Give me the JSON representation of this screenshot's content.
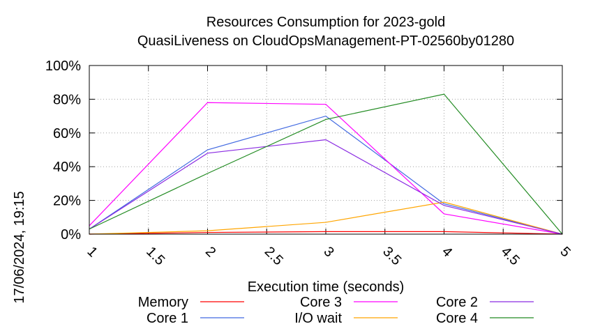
{
  "chart_data": {
    "type": "line",
    "title_line1": "Resources Consumption for 2023-gold",
    "title_line2": "QuasiLiveness on CloudOpsManagement-PT-02560by01280",
    "xlabel": "Execution time (seconds)",
    "ylabel": "",
    "side_label": "17/06/2024, 19:15",
    "xlim": [
      1,
      5
    ],
    "ylim": [
      0,
      100
    ],
    "xticks": [
      "1",
      "1.5",
      "2",
      "2.5",
      "3",
      "3.5",
      "4",
      "4.5",
      "5"
    ],
    "yticks": [
      "0%",
      "20%",
      "40%",
      "60%",
      "80%",
      "100%"
    ],
    "grid": true,
    "legend_position": "bottom",
    "x": [
      1,
      2,
      3,
      4,
      5
    ],
    "series": [
      {
        "name": "Memory",
        "color": "#ff0000",
        "values": [
          0,
          1,
          1.5,
          1.5,
          0
        ]
      },
      {
        "name": "Core 1",
        "color": "#4169e1",
        "values": [
          3,
          50,
          70,
          18,
          0
        ]
      },
      {
        "name": "Core 3",
        "color": "#ff00ff",
        "values": [
          5,
          78,
          77,
          12,
          0
        ]
      },
      {
        "name": "I/O wait",
        "color": "#ffa500",
        "values": [
          0,
          2,
          7,
          19,
          0
        ]
      },
      {
        "name": "Core 2",
        "color": "#8a2be2",
        "values": [
          3,
          48,
          56,
          17,
          0
        ]
      },
      {
        "name": "Core 4",
        "color": "#228b22",
        "values": [
          3,
          36,
          68,
          83,
          0
        ]
      }
    ]
  }
}
